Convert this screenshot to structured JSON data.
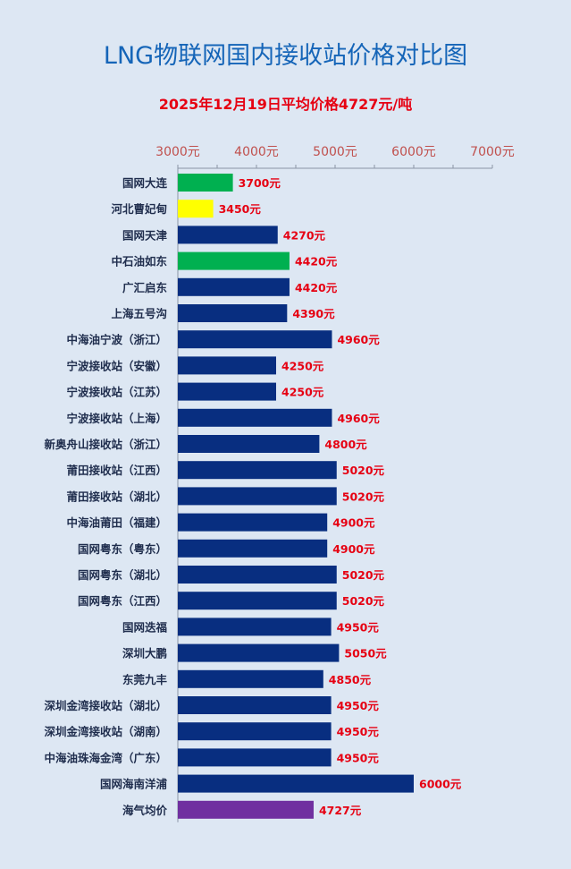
{
  "title": "LNG物联网国内接收站价格对比图",
  "subtitle": "2025年12月19日平均价格4727元/吨",
  "colors": {
    "background": "#dde7f3",
    "title": "#1565b8",
    "subtitle": "#e60012",
    "tick_label": "#c0504d",
    "value_label": "#e60012",
    "category_label": "#1f2d4d",
    "navy": "#082e80",
    "green": "#00b050",
    "yellow": "#ffff00",
    "purple": "#7030a0"
  },
  "chart_data": {
    "type": "bar",
    "orientation": "horizontal",
    "xlim": [
      3000,
      7000
    ],
    "tick_labels": [
      "3000元",
      "4000元",
      "5000元",
      "6000元",
      "7000元"
    ],
    "tick_values": [
      3000,
      4000,
      5000,
      6000,
      7000
    ],
    "unit_suffix": "元",
    "grid": false,
    "categories": [
      "国网大连",
      "河北曹妃甸",
      "国网天津",
      "中石油如东",
      "广汇启东",
      "上海五号沟",
      "中海油宁波（浙江）",
      "宁波接收站（安徽）",
      "宁波接收站（江苏）",
      "宁波接收站（上海）",
      "新奥舟山接收站（浙江）",
      "莆田接收站（江西）",
      "莆田接收站（湖北）",
      "中海油莆田（福建）",
      "国网粤东（粤东）",
      "国网粤东（湖北）",
      "国网粤东（江西）",
      "国网迭福",
      "深圳大鹏",
      "东莞九丰",
      "深圳金湾接收站（湖北）",
      "深圳金湾接收站（湖南）",
      "中海油珠海金湾（广东）",
      "国网海南洋浦",
      "海气均价"
    ],
    "values": [
      3700,
      3450,
      4270,
      4420,
      4420,
      4390,
      4960,
      4250,
      4250,
      4960,
      4800,
      5020,
      5020,
      4900,
      4900,
      5020,
      5020,
      4950,
      5050,
      4850,
      4950,
      4950,
      4950,
      6000,
      4727
    ],
    "value_labels": [
      "3700元",
      "3450元",
      "4270元",
      "4420元",
      "4420元",
      "4390元",
      "4960元",
      "4250元",
      "4250元",
      "4960元",
      "4800元",
      "5020元",
      "5020元",
      "4900元",
      "4900元",
      "5020元",
      "5020元",
      "4950元",
      "5050元",
      "4850元",
      "4950元",
      "4950元",
      "4950元",
      "6000元",
      "4727元"
    ],
    "bar_colors": [
      "#00b050",
      "#ffff00",
      "#082e80",
      "#00b050",
      "#082e80",
      "#082e80",
      "#082e80",
      "#082e80",
      "#082e80",
      "#082e80",
      "#082e80",
      "#082e80",
      "#082e80",
      "#082e80",
      "#082e80",
      "#082e80",
      "#082e80",
      "#082e80",
      "#082e80",
      "#082e80",
      "#082e80",
      "#082e80",
      "#082e80",
      "#082e80",
      "#7030a0"
    ]
  }
}
